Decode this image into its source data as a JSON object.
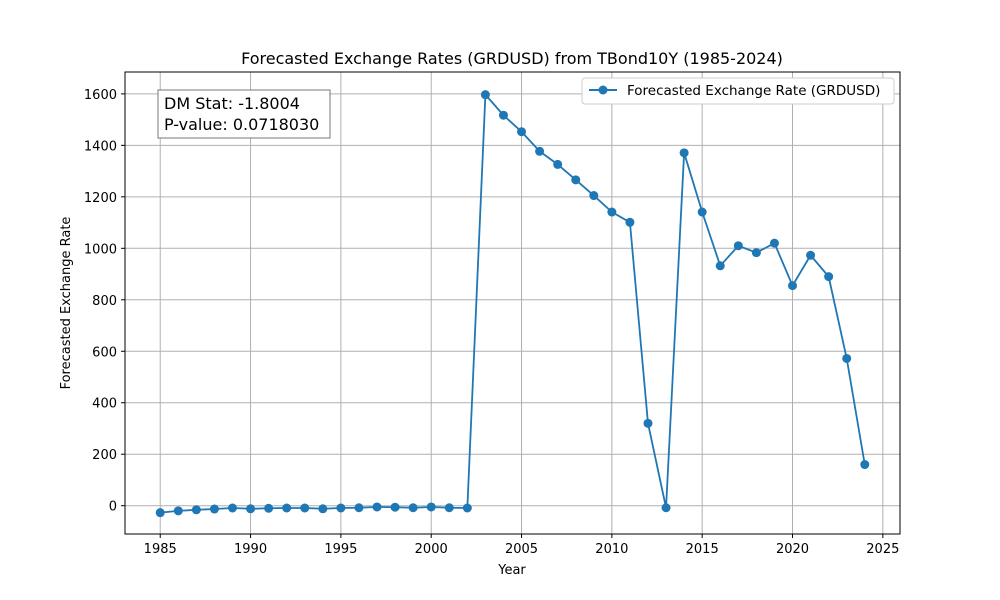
{
  "chart_data": {
    "type": "line",
    "title": "Forecasted Exchange Rates (GRDUSD) from TBond10Y (1985-2024)",
    "xlabel": "Year",
    "ylabel": "Forecasted Exchange Rate",
    "xlim": [
      1983.05,
      2025.95
    ],
    "ylim": [
      -110,
      1685
    ],
    "xticks": [
      1985,
      1990,
      1995,
      2000,
      2005,
      2010,
      2015,
      2020,
      2025
    ],
    "yticks": [
      0,
      200,
      400,
      600,
      800,
      1000,
      1200,
      1400,
      1600
    ],
    "grid": true,
    "legend_position": "top-right",
    "series": [
      {
        "name": "Forecasted Exchange Rate (GRDUSD)",
        "color": "#1f77b4",
        "marker": "circle",
        "x": [
          1985,
          1986,
          1987,
          1988,
          1989,
          1990,
          1991,
          1992,
          1993,
          1994,
          1995,
          1996,
          1997,
          1998,
          1999,
          2000,
          2001,
          2002,
          2003,
          2004,
          2005,
          2006,
          2007,
          2008,
          2009,
          2010,
          2011,
          2012,
          2013,
          2014,
          2015,
          2016,
          2017,
          2018,
          2019,
          2020,
          2021,
          2022,
          2023,
          2024
        ],
        "y": [
          -27,
          -20,
          -16,
          -13,
          -9,
          -12,
          -10,
          -9,
          -9,
          -12,
          -9,
          -8,
          -5,
          -6,
          -8,
          -5,
          -8,
          -9,
          1597,
          1517,
          1453,
          1377,
          1326,
          1266,
          1205,
          1141,
          1101,
          320,
          -8,
          1371,
          1141,
          932,
          1010,
          983,
          1020,
          855,
          973,
          890,
          572,
          160
        ]
      }
    ],
    "annotation": {
      "lines": [
        "DM Stat: -1.8004",
        "P-value: 0.0718030"
      ],
      "position": "top-left"
    }
  }
}
